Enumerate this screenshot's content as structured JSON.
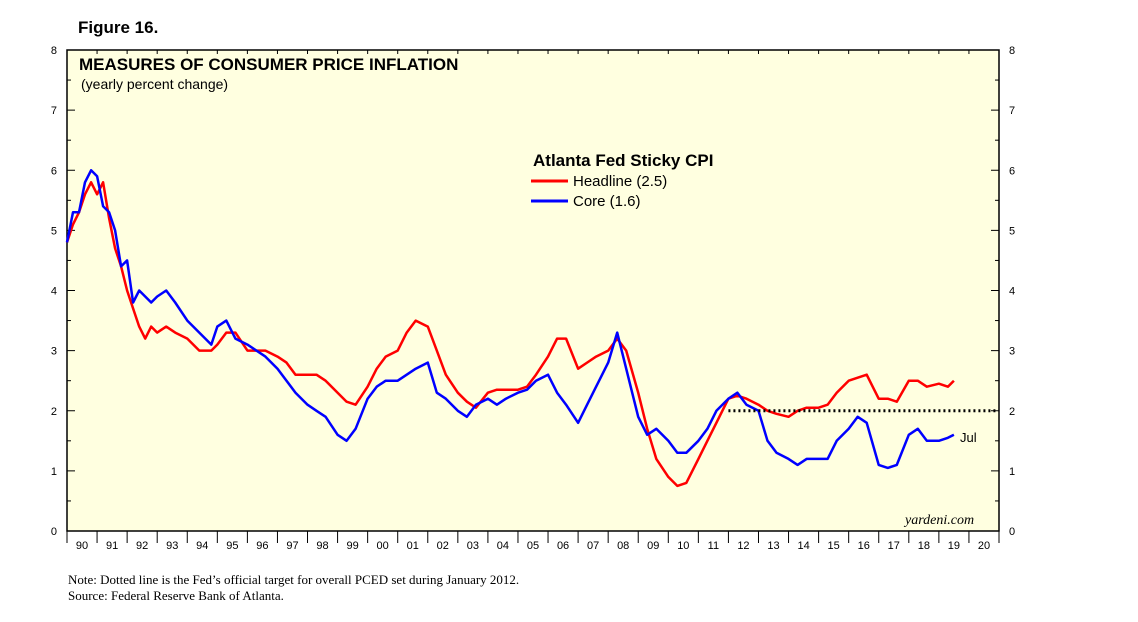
{
  "figure_label": "Figure 16.",
  "notes": {
    "line1": "Note: Dotted line is the Fed’s official target for overall PCED set during January 2012.",
    "line2": "Source: Federal Reserve Bank of Atlanta."
  },
  "watermark": "yardeni.com",
  "colors": {
    "plot_bg": "#FFFFE0",
    "headline": "#FF0000",
    "core": "#0000FF",
    "target": "#000000"
  },
  "chart_data": {
    "type": "line",
    "title": "MEASURES OF CONSUMER PRICE INFLATION",
    "subtitle": "(yearly percent change)",
    "legend_title": "Atlanta Fed Sticky CPI",
    "y_ticks": [
      "0",
      "1",
      "2",
      "3",
      "4",
      "5",
      "6",
      "7",
      "8"
    ],
    "ylim": [
      0,
      8
    ],
    "xlim": [
      1990.0,
      2021.0
    ],
    "x_tick_labels": [
      "90",
      "91",
      "92",
      "93",
      "94",
      "95",
      "96",
      "97",
      "98",
      "99",
      "00",
      "01",
      "02",
      "03",
      "04",
      "05",
      "06",
      "07",
      "08",
      "09",
      "10",
      "11",
      "12",
      "13",
      "14",
      "15",
      "16",
      "17",
      "18",
      "19",
      "20"
    ],
    "end_label": "Jul",
    "target": {
      "value": 2.0,
      "from": 2012.0,
      "to": 2021.0
    },
    "series": [
      {
        "name": "Headline (2.5)",
        "x": [
          1990.0,
          1990.2,
          1990.4,
          1990.6,
          1990.8,
          1991.0,
          1991.2,
          1991.4,
          1991.6,
          1991.8,
          1992.0,
          1992.2,
          1992.4,
          1992.6,
          1992.8,
          1993.0,
          1993.3,
          1993.6,
          1994.0,
          1994.4,
          1994.8,
          1995.0,
          1995.3,
          1995.6,
          1996.0,
          1996.3,
          1996.6,
          1997.0,
          1997.3,
          1997.6,
          1998.0,
          1998.3,
          1998.6,
          1999.0,
          1999.3,
          1999.6,
          2000.0,
          2000.3,
          2000.6,
          2001.0,
          2001.3,
          2001.6,
          2002.0,
          2002.3,
          2002.6,
          2003.0,
          2003.3,
          2003.6,
          2004.0,
          2004.3,
          2004.6,
          2005.0,
          2005.3,
          2005.6,
          2006.0,
          2006.3,
          2006.6,
          2007.0,
          2007.3,
          2007.6,
          2008.0,
          2008.3,
          2008.6,
          2009.0,
          2009.3,
          2009.6,
          2010.0,
          2010.3,
          2010.6,
          2011.0,
          2011.3,
          2011.6,
          2012.0,
          2012.3,
          2012.6,
          2013.0,
          2013.3,
          2013.6,
          2014.0,
          2014.3,
          2014.6,
          2015.0,
          2015.3,
          2015.6,
          2016.0,
          2016.3,
          2016.6,
          2017.0,
          2017.3,
          2017.6,
          2018.0,
          2018.3,
          2018.6,
          2019.0,
          2019.3,
          2019.5
        ],
        "values": [
          4.8,
          5.1,
          5.3,
          5.6,
          5.8,
          5.6,
          5.8,
          5.2,
          4.7,
          4.4,
          4.0,
          3.7,
          3.4,
          3.2,
          3.4,
          3.3,
          3.4,
          3.3,
          3.2,
          3.0,
          3.0,
          3.1,
          3.3,
          3.3,
          3.0,
          3.0,
          3.0,
          2.9,
          2.8,
          2.6,
          2.6,
          2.6,
          2.5,
          2.3,
          2.15,
          2.1,
          2.4,
          2.7,
          2.9,
          3.0,
          3.3,
          3.5,
          3.4,
          3.0,
          2.6,
          2.3,
          2.15,
          2.05,
          2.3,
          2.35,
          2.35,
          2.35,
          2.4,
          2.6,
          2.9,
          3.2,
          3.2,
          2.7,
          2.8,
          2.9,
          3.0,
          3.2,
          3.0,
          2.3,
          1.7,
          1.2,
          0.9,
          0.75,
          0.8,
          1.2,
          1.5,
          1.8,
          2.2,
          2.25,
          2.2,
          2.1,
          2.0,
          1.95,
          1.9,
          2.0,
          2.05,
          2.05,
          2.1,
          2.3,
          2.5,
          2.55,
          2.6,
          2.2,
          2.2,
          2.15,
          2.5,
          2.5,
          2.4,
          2.45,
          2.4,
          2.5
        ]
      },
      {
        "name": "Core (1.6)",
        "x": [
          1990.0,
          1990.2,
          1990.4,
          1990.6,
          1990.8,
          1991.0,
          1991.2,
          1991.4,
          1991.6,
          1991.8,
          1992.0,
          1992.2,
          1992.4,
          1992.6,
          1992.8,
          1993.0,
          1993.3,
          1993.6,
          1994.0,
          1994.4,
          1994.8,
          1995.0,
          1995.3,
          1995.6,
          1996.0,
          1996.3,
          1996.6,
          1997.0,
          1997.3,
          1997.6,
          1998.0,
          1998.3,
          1998.6,
          1999.0,
          1999.3,
          1999.6,
          2000.0,
          2000.3,
          2000.6,
          2001.0,
          2001.3,
          2001.6,
          2002.0,
          2002.3,
          2002.6,
          2003.0,
          2003.3,
          2003.6,
          2004.0,
          2004.3,
          2004.6,
          2005.0,
          2005.3,
          2005.6,
          2006.0,
          2006.3,
          2006.6,
          2007.0,
          2007.3,
          2007.6,
          2008.0,
          2008.3,
          2008.6,
          2009.0,
          2009.3,
          2009.6,
          2010.0,
          2010.3,
          2010.6,
          2011.0,
          2011.3,
          2011.6,
          2012.0,
          2012.3,
          2012.6,
          2013.0,
          2013.3,
          2013.6,
          2014.0,
          2014.3,
          2014.6,
          2015.0,
          2015.3,
          2015.6,
          2016.0,
          2016.3,
          2016.6,
          2017.0,
          2017.3,
          2017.6,
          2018.0,
          2018.3,
          2018.6,
          2019.0,
          2019.3,
          2019.5
        ],
        "values": [
          4.8,
          5.3,
          5.3,
          5.8,
          6.0,
          5.9,
          5.4,
          5.3,
          5.0,
          4.4,
          4.5,
          3.8,
          4.0,
          3.9,
          3.8,
          3.9,
          4.0,
          3.8,
          3.5,
          3.3,
          3.1,
          3.4,
          3.5,
          3.2,
          3.1,
          3.0,
          2.9,
          2.7,
          2.5,
          2.3,
          2.1,
          2.0,
          1.9,
          1.6,
          1.5,
          1.7,
          2.2,
          2.4,
          2.5,
          2.5,
          2.6,
          2.7,
          2.8,
          2.3,
          2.2,
          2.0,
          1.9,
          2.1,
          2.2,
          2.1,
          2.2,
          2.3,
          2.35,
          2.5,
          2.6,
          2.3,
          2.1,
          1.8,
          2.1,
          2.4,
          2.8,
          3.3,
          2.7,
          1.9,
          1.6,
          1.7,
          1.5,
          1.3,
          1.3,
          1.5,
          1.7,
          2.0,
          2.2,
          2.3,
          2.1,
          2.0,
          1.5,
          1.3,
          1.2,
          1.1,
          1.2,
          1.2,
          1.2,
          1.5,
          1.7,
          1.9,
          1.8,
          1.1,
          1.05,
          1.1,
          1.6,
          1.7,
          1.5,
          1.5,
          1.55,
          1.6
        ]
      }
    ]
  }
}
